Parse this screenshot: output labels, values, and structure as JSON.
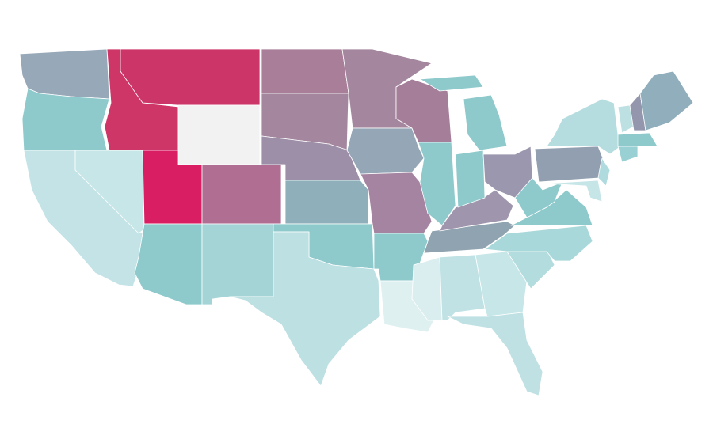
{
  "map": {
    "regions": [
      {
        "color": "#97a8b8"
      },
      {
        "color": "#8ecacc"
      },
      {
        "color": "#c3e3e6"
      },
      {
        "color": "#c6e6e8"
      },
      {
        "color": "#cf3668"
      },
      {
        "color": "#cc3568"
      },
      {
        "color": "#f2f2f3"
      },
      {
        "color": "#d91e63"
      },
      {
        "color": "#b06e93"
      },
      {
        "color": "#8ec9cc"
      },
      {
        "color": "#a4d4d6"
      },
      {
        "color": "#a87e99"
      },
      {
        "color": "#a4879f"
      },
      {
        "color": "#9e8fa8"
      },
      {
        "color": "#8fb0ba"
      },
      {
        "color": "#8ec9cc"
      },
      {
        "color": "#bde0e2"
      },
      {
        "color": "#a4879f"
      },
      {
        "color": "#95a6b6"
      },
      {
        "color": "#a484a0"
      },
      {
        "color": "#8ec9cc"
      },
      {
        "color": "#dff0f1"
      },
      {
        "color": "#a57e9a"
      },
      {
        "color": "#8ec9cc"
      },
      {
        "color": "#dbeeef"
      },
      {
        "color": "#90a3b0"
      },
      {
        "color": "#9f95ad"
      },
      {
        "color": "#8ec9cc"
      },
      {
        "color": "#8ec9cc"
      },
      {
        "color": "#8ec9cc"
      },
      {
        "color": "#9a97ae"
      },
      {
        "color": "#c0e2e4"
      },
      {
        "color": "#c6e6e8"
      },
      {
        "color": "#bfe1e3"
      },
      {
        "color": "#b2dcde"
      },
      {
        "color": "#a9d8da"
      },
      {
        "color": "#8ec9cc"
      },
      {
        "color": "#8ec9cc"
      },
      {
        "color": "#929fb0"
      },
      {
        "color": "#b5dde0"
      },
      {
        "color": "#c5e5e7"
      },
      {
        "color": "#b0dbde"
      },
      {
        "color": "#99d0d3"
      },
      {
        "color": "#8ecacc"
      },
      {
        "color": "#bde0e2"
      },
      {
        "color": "#9396ad"
      },
      {
        "color": "#90aebc"
      }
    ]
  }
}
